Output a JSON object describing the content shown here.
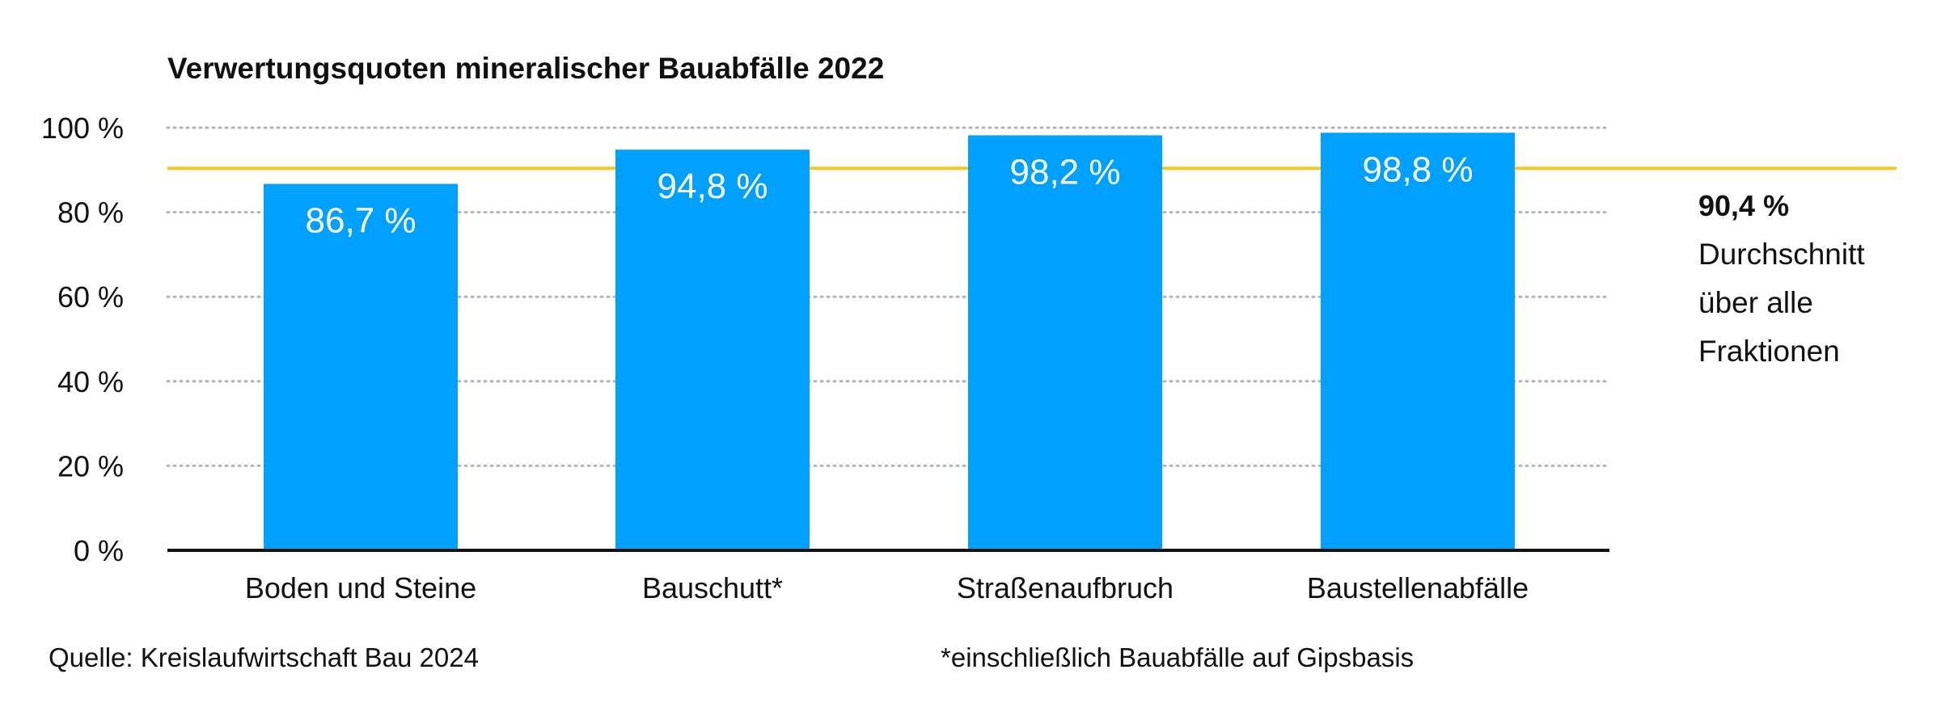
{
  "chart_data": {
    "type": "bar",
    "title": "Verwertungsquoten mineralischer Bauabfälle 2022",
    "categories": [
      "Boden und Steine",
      "Bauschutt*",
      "Straßenaufbruch",
      "Baustellenabfälle"
    ],
    "values": [
      86.7,
      94.8,
      98.2,
      98.8
    ],
    "value_labels": [
      "86,7 %",
      "94,8 %",
      "98,2 %",
      "98,8 %"
    ],
    "ylim": [
      0,
      100
    ],
    "yticks": [
      0,
      20,
      40,
      60,
      80,
      100
    ],
    "ytick_labels": [
      "0 %",
      "20 %",
      "40 %",
      "60 %",
      "80 %",
      "100 %"
    ],
    "grid": "horizontal dotted",
    "bar_color": "#00A0FF",
    "reference_line": {
      "value": 90.4,
      "value_label": "90,4 %",
      "label_lines": [
        "Durchschnitt",
        "über alle",
        "Fraktionen"
      ],
      "color": "#F8C61E"
    }
  },
  "footer": {
    "source": "Quelle: Kreislaufwirtschaft Bau 2024",
    "note": "*einschließlich Bauabfälle auf Gipsbasis"
  }
}
